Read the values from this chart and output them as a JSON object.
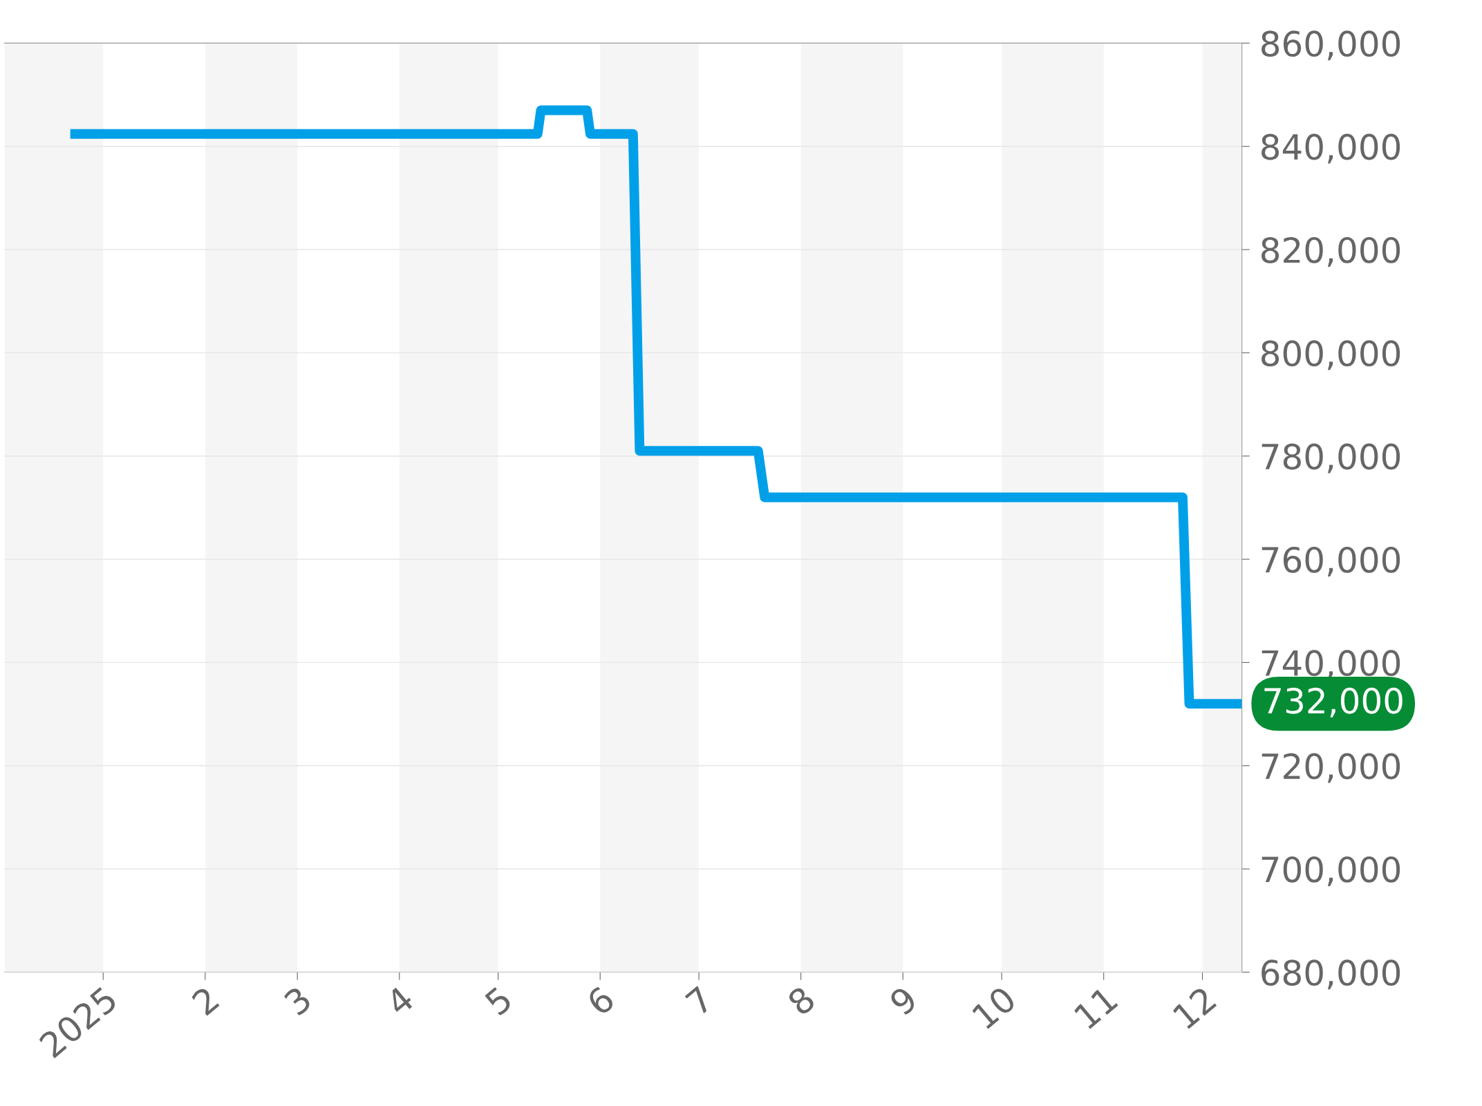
{
  "chart_data": {
    "type": "line",
    "x": [
      "2024-12-22",
      "2025-05-13",
      "2025-05-14",
      "2025-05-28",
      "2025-05-29",
      "2025-06-11",
      "2025-06-13",
      "2025-07-19",
      "2025-07-21",
      "2025-11-25",
      "2025-11-27",
      "2025-12-13"
    ],
    "series": [
      {
        "color": "#00a0e9",
        "values": [
          842400,
          842400,
          847000,
          847000,
          842400,
          842400,
          781000,
          781000,
          772000,
          772000,
          732000,
          732000
        ]
      }
    ],
    "xlim": [
      "2024-12-02",
      "2025-12-13"
    ],
    "xticks": [
      {
        "value": "2025-01-01",
        "label": "2025"
      },
      {
        "value": "2025-02-01",
        "label": "2"
      },
      {
        "value": "2025-03-01",
        "label": "3"
      },
      {
        "value": "2025-04-01",
        "label": "4"
      },
      {
        "value": "2025-05-01",
        "label": "5"
      },
      {
        "value": "2025-06-01",
        "label": "6"
      },
      {
        "value": "2025-07-01",
        "label": "7"
      },
      {
        "value": "2025-08-01",
        "label": "8"
      },
      {
        "value": "2025-09-01",
        "label": "9"
      },
      {
        "value": "2025-10-01",
        "label": "10"
      },
      {
        "value": "2025-11-01",
        "label": "11"
      },
      {
        "value": "2025-12-01",
        "label": "12"
      }
    ],
    "ylim": [
      680000,
      860000
    ],
    "yticks": [
      {
        "value": 680000,
        "label": "680,000"
      },
      {
        "value": 700000,
        "label": "700,000"
      },
      {
        "value": 720000,
        "label": "720,000"
      },
      {
        "value": 740000,
        "label": "740,000"
      },
      {
        "value": 760000,
        "label": "760,000"
      },
      {
        "value": 780000,
        "label": "780,000"
      },
      {
        "value": 800000,
        "label": "800,000"
      },
      {
        "value": 820000,
        "label": "820,000"
      },
      {
        "value": 840000,
        "label": "840,000"
      },
      {
        "value": 860000,
        "label": "860,000"
      }
    ],
    "bands": [
      {
        "axis": "x",
        "from": "2024-12-02",
        "to": "2025-01-01",
        "color": "#f5f5f5"
      },
      {
        "axis": "x",
        "from": "2025-02-01",
        "to": "2025-03-01",
        "color": "#f5f5f5"
      },
      {
        "axis": "x",
        "from": "2025-04-01",
        "to": "2025-05-01",
        "color": "#f5f5f5"
      },
      {
        "axis": "x",
        "from": "2025-06-01",
        "to": "2025-07-01",
        "color": "#f5f5f5"
      },
      {
        "axis": "x",
        "from": "2025-08-01",
        "to": "2025-09-01",
        "color": "#f5f5f5"
      },
      {
        "axis": "x",
        "from": "2025-10-01",
        "to": "2025-11-01",
        "color": "#f5f5f5"
      },
      {
        "axis": "x",
        "from": "2025-12-01",
        "to": "2025-12-13",
        "color": "#f5f5f5"
      }
    ],
    "annotations": [
      {
        "text": "732,000",
        "x": "2025-12-13",
        "y": 732000
      }
    ],
    "grid": "y",
    "legend": false,
    "marker": "none",
    "line_style": "solid"
  }
}
